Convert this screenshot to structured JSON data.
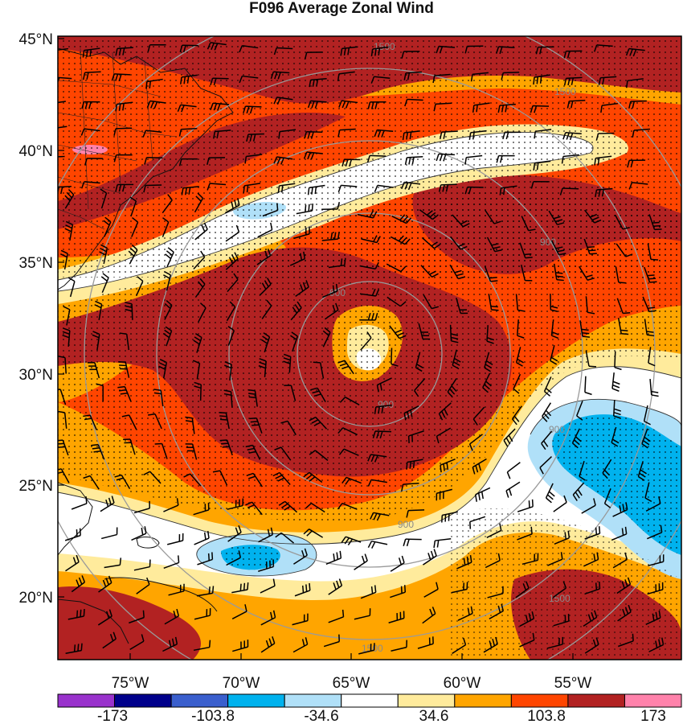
{
  "title": "F096 Average Zonal Wind",
  "latitude_labels": [
    "45°N",
    "40°N",
    "35°N",
    "30°N",
    "25°N",
    "20°N"
  ],
  "longitude_labels": [
    "75°W",
    "70°W",
    "65°W",
    "60°W",
    "55°W"
  ],
  "range_ring_labels": [
    "1500",
    "1500",
    "900",
    "900",
    "900",
    "900",
    "900",
    "1500",
    "1500"
  ],
  "colorbar": {
    "labels": [
      "-173",
      "-103.8",
      "-34.6",
      "34.6",
      "103.8",
      "173"
    ],
    "colors": [
      "#9932cc",
      "#00008b",
      "#3a5fcd",
      "#00b2ee",
      "#b0e0f8",
      "#ffffff",
      "#ffeb9c",
      "#ffa500",
      "#ff4500",
      "#b22222",
      "#ff82ab"
    ]
  },
  "colors": {
    "dark_red": "#b22222",
    "red_orange": "#ff4500",
    "orange": "#ffa500",
    "pale_yellow": "#ffeb9c",
    "light_blue": "#b0e0f8",
    "blue": "#00b2ee",
    "pink": "#ff82ab"
  }
}
